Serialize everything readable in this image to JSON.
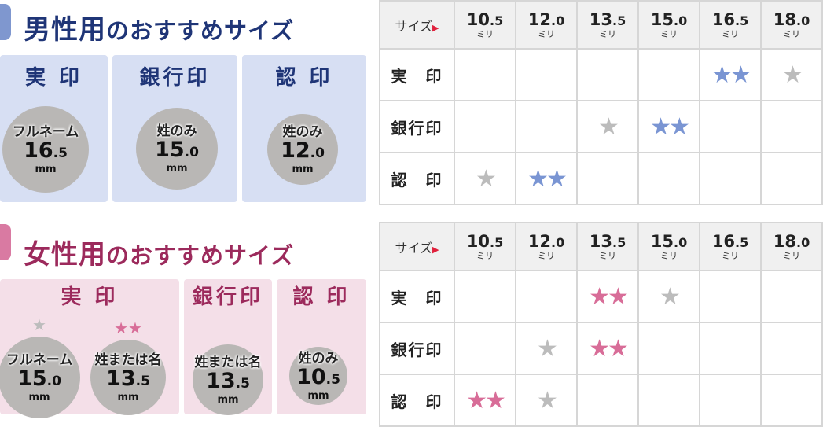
{
  "colors": {
    "men_title": "#1f3577",
    "men_panel": "#d7dff3",
    "men_star": "#7a95d3",
    "women_title": "#9c2a5c",
    "women_panel": "#f4dfe8",
    "women_star": "#d86d98",
    "gray_star": "#bcbcbc",
    "circle": "#b9b7b5"
  },
  "size_header": "サイズ",
  "size_arrow": "▶",
  "unit_mili": "ミリ",
  "star_glyph": "★",
  "sizes": [
    [
      "10",
      ".5"
    ],
    [
      "12",
      ".0"
    ],
    [
      "13",
      ".5"
    ],
    [
      "15",
      ".0"
    ],
    [
      "16",
      ".5"
    ],
    [
      "18",
      ".0"
    ]
  ],
  "men": {
    "title_main": "男性用",
    "title_rest": "のおすすめサイズ",
    "panels": [
      {
        "heading": "実 印",
        "circles": [
          {
            "label": "フルネーム",
            "int": "16",
            "dec": ".5",
            "unit": "mm"
          }
        ]
      },
      {
        "heading": "銀行印",
        "circles": [
          {
            "label": "姓のみ",
            "int": "15",
            "dec": ".0",
            "unit": "mm"
          }
        ]
      },
      {
        "heading": "認 印",
        "circles": [
          {
            "label": "姓のみ",
            "int": "12",
            "dec": ".0",
            "unit": "mm"
          }
        ]
      }
    ],
    "table": [
      {
        "label": "実　印",
        "cells": [
          null,
          null,
          null,
          null,
          {
            "stars": 2,
            "tone": "accent"
          },
          {
            "stars": 1,
            "tone": "gray"
          }
        ]
      },
      {
        "label": "銀行印",
        "cells": [
          null,
          null,
          {
            "stars": 1,
            "tone": "gray"
          },
          {
            "stars": 2,
            "tone": "accent"
          },
          null,
          null
        ]
      },
      {
        "label": "認　印",
        "cells": [
          {
            "stars": 1,
            "tone": "gray"
          },
          {
            "stars": 2,
            "tone": "accent"
          },
          null,
          null,
          null,
          null
        ]
      }
    ]
  },
  "women": {
    "title_main": "女性用",
    "title_rest": "のおすすめサイズ",
    "panels": [
      {
        "heading": "実 印",
        "circles": [
          {
            "label": "フルネーム",
            "int": "15",
            "dec": ".0",
            "unit": "mm",
            "stars": 1,
            "tone": "gray"
          },
          {
            "label": "姓または名",
            "int": "13",
            "dec": ".5",
            "unit": "mm",
            "stars": 2,
            "tone": "accent"
          }
        ]
      },
      {
        "heading": "銀行印",
        "circles": [
          {
            "label": "姓または名",
            "int": "13",
            "dec": ".5",
            "unit": "mm"
          }
        ]
      },
      {
        "heading": "認 印",
        "circles": [
          {
            "label": "姓のみ",
            "int": "10",
            "dec": ".5",
            "unit": "mm"
          }
        ]
      }
    ],
    "table": [
      {
        "label": "実　印",
        "cells": [
          null,
          null,
          {
            "stars": 2,
            "tone": "accent"
          },
          {
            "stars": 1,
            "tone": "gray"
          },
          null,
          null
        ]
      },
      {
        "label": "銀行印",
        "cells": [
          null,
          {
            "stars": 1,
            "tone": "gray"
          },
          {
            "stars": 2,
            "tone": "accent"
          },
          null,
          null,
          null
        ]
      },
      {
        "label": "認　印",
        "cells": [
          {
            "stars": 2,
            "tone": "accent"
          },
          {
            "stars": 1,
            "tone": "gray"
          },
          null,
          null,
          null,
          null
        ]
      }
    ]
  }
}
